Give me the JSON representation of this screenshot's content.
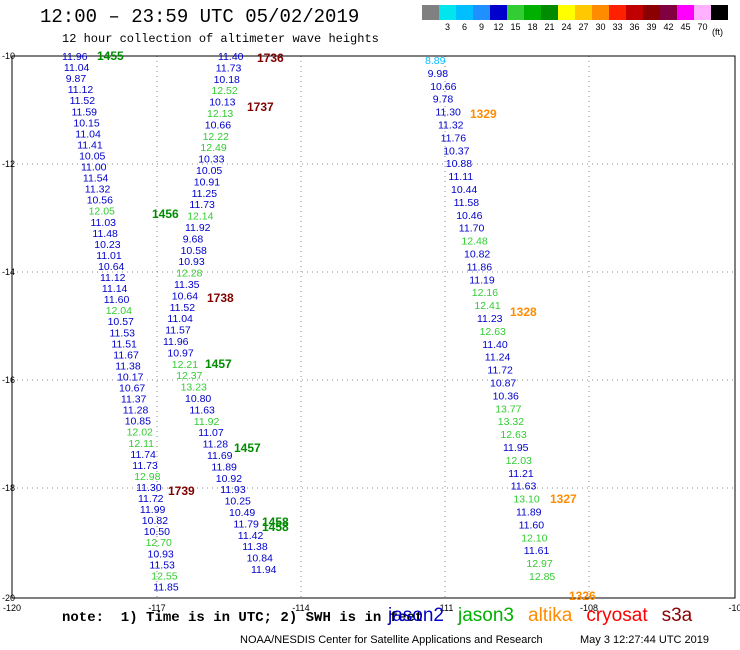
{
  "header": {
    "title": "12:00 – 23:59 UTC 05/02/2019",
    "subtitle": "12 hour collection of altimeter wave heights"
  },
  "legend": {
    "unit": "(ft)",
    "items": [
      {
        "label": "",
        "color": "#808080"
      },
      {
        "label": "3",
        "color": "#00e5ee"
      },
      {
        "label": "6",
        "color": "#00bfff"
      },
      {
        "label": "9",
        "color": "#1e90ff"
      },
      {
        "label": "12",
        "color": "#0000cd"
      },
      {
        "label": "15",
        "color": "#32cd32"
      },
      {
        "label": "18",
        "color": "#00b000"
      },
      {
        "label": "21",
        "color": "#008b00"
      },
      {
        "label": "24",
        "color": "#ffff00"
      },
      {
        "label": "27",
        "color": "#ffc800"
      },
      {
        "label": "30",
        "color": "#ff8c00"
      },
      {
        "label": "33",
        "color": "#ff2000"
      },
      {
        "label": "36",
        "color": "#c00000"
      },
      {
        "label": "39",
        "color": "#8b0000"
      },
      {
        "label": "42",
        "color": "#800040"
      },
      {
        "label": "45",
        "color": "#ff00ff"
      },
      {
        "label": "70",
        "color": "#ffb0ff"
      },
      {
        "label": "",
        "color": "#000000"
      }
    ]
  },
  "map": {
    "lon_labels": [
      "-120",
      "-117",
      "-114",
      "-111",
      "-108",
      "-10"
    ],
    "lat_labels": [
      "-10",
      "-12",
      "-14",
      "-16",
      "-18",
      "-20"
    ],
    "colors": {
      "grid": "#888888",
      "jason2": "#0000cd",
      "jason3": "#32cd32",
      "jason3_time": "#008b00",
      "altika": "#ff8c00",
      "cryosat": "#800000"
    },
    "swh_points": [
      {
        "v": "11.96",
        "c": "jason2",
        "col": 0,
        "row": 0
      },
      {
        "v": "11.04",
        "c": "jason2",
        "col": 0,
        "row": 1
      },
      {
        "v": "9.87",
        "c": "jason2",
        "col": 0,
        "row": 2
      },
      {
        "v": "11.12",
        "c": "jason2",
        "col": 0,
        "row": 3
      },
      {
        "v": "11.52",
        "c": "jason2",
        "col": 0,
        "row": 4
      },
      {
        "v": "11.59",
        "c": "jason2",
        "col": 0,
        "row": 5
      },
      {
        "v": "10.15",
        "c": "jason2",
        "col": 0,
        "row": 6
      },
      {
        "v": "11.04",
        "c": "jason2",
        "col": 0,
        "row": 7
      },
      {
        "v": "11.41",
        "c": "jason2",
        "col": 0,
        "row": 8
      },
      {
        "v": "10.05",
        "c": "jason2",
        "col": 0,
        "row": 9
      },
      {
        "v": "11.00",
        "c": "jason2",
        "col": 0,
        "row": 10
      },
      {
        "v": "11.54",
        "c": "jason2",
        "col": 0,
        "row": 11
      },
      {
        "v": "11.32",
        "c": "jason2",
        "col": 0,
        "row": 12
      },
      {
        "v": "10.56",
        "c": "jason2",
        "col": 0,
        "row": 13
      },
      {
        "v": "12.05",
        "c": "jason3",
        "col": 0,
        "row": 14
      },
      {
        "v": "11.03",
        "c": "jason2",
        "col": 0,
        "row": 15
      },
      {
        "v": "11.48",
        "c": "jason2",
        "col": 0,
        "row": 16
      },
      {
        "v": "10.23",
        "c": "jason2",
        "col": 0,
        "row": 17
      },
      {
        "v": "11.01",
        "c": "jason2",
        "col": 0,
        "row": 18
      },
      {
        "v": "10.64",
        "c": "jason2",
        "col": 0,
        "row": 19
      },
      {
        "v": "11.12",
        "c": "jason2",
        "col": 0,
        "row": 20
      },
      {
        "v": "11.14",
        "c": "jason2",
        "col": 0,
        "row": 21
      },
      {
        "v": "11.60",
        "c": "jason2",
        "col": 0,
        "row": 22
      },
      {
        "v": "12.04",
        "c": "jason3",
        "col": 0,
        "row": 23
      },
      {
        "v": "10.57",
        "c": "jason2",
        "col": 0,
        "row": 24
      },
      {
        "v": "11.53",
        "c": "jason2",
        "col": 0,
        "row": 25
      },
      {
        "v": "11.51",
        "c": "jason2",
        "col": 0,
        "row": 26
      },
      {
        "v": "11.67",
        "c": "jason2",
        "col": 0,
        "row": 27
      },
      {
        "v": "11.38",
        "c": "jason2",
        "col": 0,
        "row": 28
      },
      {
        "v": "10.17",
        "c": "jason2",
        "col": 0,
        "row": 29
      },
      {
        "v": "10.67",
        "c": "jason2",
        "col": 0,
        "row": 30
      },
      {
        "v": "11.37",
        "c": "jason2",
        "col": 0,
        "row": 31
      },
      {
        "v": "11.28",
        "c": "jason2",
        "col": 0,
        "row": 32
      },
      {
        "v": "10.85",
        "c": "jason2",
        "col": 0,
        "row": 33
      },
      {
        "v": "12.02",
        "c": "jason3",
        "col": 0,
        "row": 34
      },
      {
        "v": "12.11",
        "c": "jason3",
        "col": 0,
        "row": 35
      },
      {
        "v": "11.74",
        "c": "jason2",
        "col": 0,
        "row": 36
      },
      {
        "v": "11.73",
        "c": "jason2",
        "col": 0,
        "row": 37
      },
      {
        "v": "12.98",
        "c": "jason3",
        "col": 0,
        "row": 38
      },
      {
        "v": "11.30",
        "c": "jason2",
        "col": 0,
        "row": 39
      },
      {
        "v": "11.72",
        "c": "jason2",
        "col": 0,
        "row": 40
      },
      {
        "v": "11.99",
        "c": "jason2",
        "col": 0,
        "row": 41
      },
      {
        "v": "10.82",
        "c": "jason2",
        "col": 0,
        "row": 42
      },
      {
        "v": "10.50",
        "c": "jason2",
        "col": 0,
        "row": 43
      },
      {
        "v": "12.70",
        "c": "jason3",
        "col": 0,
        "row": 44
      },
      {
        "v": "10.93",
        "c": "jason2",
        "col": 0,
        "row": 45
      },
      {
        "v": "11.53",
        "c": "jason2",
        "col": 0,
        "row": 46
      },
      {
        "v": "12.55",
        "c": "jason3",
        "col": 0,
        "row": 47
      },
      {
        "v": "11.85",
        "c": "jason2",
        "col": 0,
        "row": 48
      },
      {
        "v": "11.40",
        "c": "jason2",
        "col": 1,
        "row": 0
      },
      {
        "v": "11.73",
        "c": "jason2",
        "col": 1,
        "row": 1
      },
      {
        "v": "10.18",
        "c": "jason2",
        "col": 1,
        "row": 2
      },
      {
        "v": "12.52",
        "c": "jason3",
        "col": 1,
        "row": 3
      },
      {
        "v": "10.13",
        "c": "jason2",
        "col": 1,
        "row": 4
      },
      {
        "v": "12.13",
        "c": "jason3",
        "col": 1,
        "row": 5
      },
      {
        "v": "10.66",
        "c": "jason2",
        "col": 1,
        "row": 6
      },
      {
        "v": "12.22",
        "c": "jason3",
        "col": 1,
        "row": 7
      },
      {
        "v": "12.49",
        "c": "jason3",
        "col": 1,
        "row": 8
      },
      {
        "v": "10.33",
        "c": "jason2",
        "col": 1,
        "row": 9
      },
      {
        "v": "10.05",
        "c": "jason2",
        "col": 1,
        "row": 10
      },
      {
        "v": "10.91",
        "c": "jason2",
        "col": 1,
        "row": 11
      },
      {
        "v": "11.25",
        "c": "jason2",
        "col": 1,
        "row": 12
      },
      {
        "v": "11.73",
        "c": "jason2",
        "col": 1,
        "row": 13
      },
      {
        "v": "12.14",
        "c": "jason3",
        "col": 1,
        "row": 14
      },
      {
        "v": "11.92",
        "c": "jason2",
        "col": 1,
        "row": 15
      },
      {
        "v": "9.68",
        "c": "jason2",
        "col": 1,
        "row": 16
      },
      {
        "v": "10.58",
        "c": "jason2",
        "col": 1,
        "row": 17
      },
      {
        "v": "10.93",
        "c": "jason2",
        "col": 1,
        "row": 18
      },
      {
        "v": "12.28",
        "c": "jason3",
        "col": 1,
        "row": 19
      },
      {
        "v": "11.35",
        "c": "jason2",
        "col": 1,
        "row": 20
      },
      {
        "v": "10.64",
        "c": "jason2",
        "col": 1,
        "row": 21
      },
      {
        "v": "11.52",
        "c": "jason2",
        "col": 1,
        "row": 22
      },
      {
        "v": "11.04",
        "c": "jason2",
        "col": 1,
        "row": 23
      },
      {
        "v": "11.57",
        "c": "jason2",
        "col": 1,
        "row": 24
      },
      {
        "v": "11.96",
        "c": "jason2",
        "col": 1,
        "row": 25
      },
      {
        "v": "10.97",
        "c": "jason2",
        "col": 1,
        "row": 26
      },
      {
        "v": "12.21",
        "c": "jason3",
        "col": 1,
        "row": 27
      },
      {
        "v": "12.37",
        "c": "jason3",
        "col": 1,
        "row": 28
      },
      {
        "v": "13.23",
        "c": "jason3",
        "col": 1,
        "row": 29
      },
      {
        "v": "10.80",
        "c": "jason2",
        "col": 1,
        "row": 30
      },
      {
        "v": "11.63",
        "c": "jason2",
        "col": 1,
        "row": 31
      },
      {
        "v": "11.92",
        "c": "jason3",
        "col": 1,
        "row": 32
      },
      {
        "v": "11.07",
        "c": "jason2",
        "col": 1,
        "row": 33
      },
      {
        "v": "11.28",
        "c": "jason2",
        "col": 1,
        "row": 34
      },
      {
        "v": "11.69",
        "c": "jason2",
        "col": 1,
        "row": 35
      },
      {
        "v": "11.89",
        "c": "jason2",
        "col": 1,
        "row": 36
      },
      {
        "v": "10.92",
        "c": "jason2",
        "col": 1,
        "row": 37
      },
      {
        "v": "11.93",
        "c": "jason2",
        "col": 1,
        "row": 38
      },
      {
        "v": "10.25",
        "c": "jason2",
        "col": 1,
        "row": 39
      },
      {
        "v": "10.49",
        "c": "jason2",
        "col": 1,
        "row": 40
      },
      {
        "v": "11.79",
        "c": "jason2",
        "col": 1,
        "row": 41
      },
      {
        "v": "11.42",
        "c": "jason2",
        "col": 1,
        "row": 42
      },
      {
        "v": "11.38",
        "c": "jason2",
        "col": 1,
        "row": 43
      },
      {
        "v": "10.84",
        "c": "jason2",
        "col": 1,
        "row": 44
      },
      {
        "v": "11.94",
        "c": "jason2",
        "col": 1,
        "row": 45
      },
      {
        "v": "8.89",
        "c": "jason2_light",
        "col": 2,
        "row": 0
      },
      {
        "v": "9.98",
        "c": "jason2",
        "col": 2,
        "row": 1
      },
      {
        "v": "10.66",
        "c": "jason2",
        "col": 2,
        "row": 2
      },
      {
        "v": "9.78",
        "c": "jason2",
        "col": 2,
        "row": 3
      },
      {
        "v": "11.30",
        "c": "jason2",
        "col": 2,
        "row": 4
      },
      {
        "v": "11.32",
        "c": "jason2",
        "col": 2,
        "row": 5
      },
      {
        "v": "11.76",
        "c": "jason2",
        "col": 2,
        "row": 6
      },
      {
        "v": "10.37",
        "c": "jason2",
        "col": 2,
        "row": 7
      },
      {
        "v": "10.88",
        "c": "jason2",
        "col": 2,
        "row": 8
      },
      {
        "v": "11.11",
        "c": "jason2",
        "col": 2,
        "row": 9
      },
      {
        "v": "10.44",
        "c": "jason2",
        "col": 2,
        "row": 10
      },
      {
        "v": "11.58",
        "c": "jason2",
        "col": 2,
        "row": 11
      },
      {
        "v": "10.46",
        "c": "jason2",
        "col": 2,
        "row": 12
      },
      {
        "v": "11.70",
        "c": "jason2",
        "col": 2,
        "row": 13
      },
      {
        "v": "12.48",
        "c": "jason3",
        "col": 2,
        "row": 14
      },
      {
        "v": "10.82",
        "c": "jason2",
        "col": 2,
        "row": 15
      },
      {
        "v": "11.86",
        "c": "jason2",
        "col": 2,
        "row": 16
      },
      {
        "v": "11.19",
        "c": "jason2",
        "col": 2,
        "row": 17
      },
      {
        "v": "12.16",
        "c": "jason3",
        "col": 2,
        "row": 18
      },
      {
        "v": "12.41",
        "c": "jason3",
        "col": 2,
        "row": 19
      },
      {
        "v": "11.23",
        "c": "jason2",
        "col": 2,
        "row": 20
      },
      {
        "v": "12.63",
        "c": "jason3",
        "col": 2,
        "row": 21
      },
      {
        "v": "11.40",
        "c": "jason2",
        "col": 2,
        "row": 22
      },
      {
        "v": "11.24",
        "c": "jason2",
        "col": 2,
        "row": 23
      },
      {
        "v": "11.72",
        "c": "jason2",
        "col": 2,
        "row": 24
      },
      {
        "v": "10.87",
        "c": "jason2",
        "col": 2,
        "row": 25
      },
      {
        "v": "10.36",
        "c": "jason2",
        "col": 2,
        "row": 26
      },
      {
        "v": "13.77",
        "c": "jason3",
        "col": 2,
        "row": 27
      },
      {
        "v": "13.32",
        "c": "jason3",
        "col": 2,
        "row": 28
      },
      {
        "v": "12.63",
        "c": "jason3",
        "col": 2,
        "row": 29
      },
      {
        "v": "11.95",
        "c": "jason2",
        "col": 2,
        "row": 30
      },
      {
        "v": "12.03",
        "c": "jason3",
        "col": 2,
        "row": 31
      },
      {
        "v": "11.21",
        "c": "jason2",
        "col": 2,
        "row": 32
      },
      {
        "v": "11.63",
        "c": "jason2",
        "col": 2,
        "row": 33
      },
      {
        "v": "13.10",
        "c": "jason3",
        "col": 2,
        "row": 34
      },
      {
        "v": "11.89",
        "c": "jason2",
        "col": 2,
        "row": 35
      },
      {
        "v": "11.60",
        "c": "jason2",
        "col": 2,
        "row": 36
      },
      {
        "v": "12.10",
        "c": "jason3",
        "col": 2,
        "row": 37
      },
      {
        "v": "11.61",
        "c": "jason2",
        "col": 2,
        "row": 38
      },
      {
        "v": "12.97",
        "c": "jason3",
        "col": 2,
        "row": 39
      },
      {
        "v": "12.85",
        "c": "jason3",
        "col": 2,
        "row": 40
      }
    ],
    "time_labels": [
      {
        "t": "1455",
        "c": "jason3_time"
      },
      {
        "t": "1736",
        "c": "cryosat"
      },
      {
        "t": "1737",
        "c": "cryosat"
      },
      {
        "t": "1329",
        "c": "altika"
      },
      {
        "t": "1456",
        "c": "jason3_time"
      },
      {
        "t": "1738",
        "c": "cryosat"
      },
      {
        "t": "1328",
        "c": "altika"
      },
      {
        "t": "1457",
        "c": "jason3_time"
      },
      {
        "t": "1457",
        "c": "jason3_time"
      },
      {
        "t": "1739",
        "c": "cryosat"
      },
      {
        "t": "1327",
        "c": "altika"
      },
      {
        "t": "1458",
        "c": "jason3_time"
      },
      {
        "t": "1458",
        "c": "jason3_time"
      },
      {
        "t": "1326",
        "c": "altika"
      }
    ]
  },
  "note": "note:  1) Time is in UTC; 2) SWH is in feet",
  "satellites": [
    {
      "name": "jason2",
      "color": "#0000cd"
    },
    {
      "name": "jason3",
      "color": "#00b000"
    },
    {
      "name": "altika",
      "color": "#ff8c00"
    },
    {
      "name": "cryosat",
      "color": "#ff0000"
    },
    {
      "name": "s3a",
      "color": "#8b0000"
    }
  ],
  "footer": {
    "credit": "NOAA/NESDIS Center for Satellite Applications and Research",
    "timestamp": "May  3 12:27:44 UTC 2019"
  }
}
